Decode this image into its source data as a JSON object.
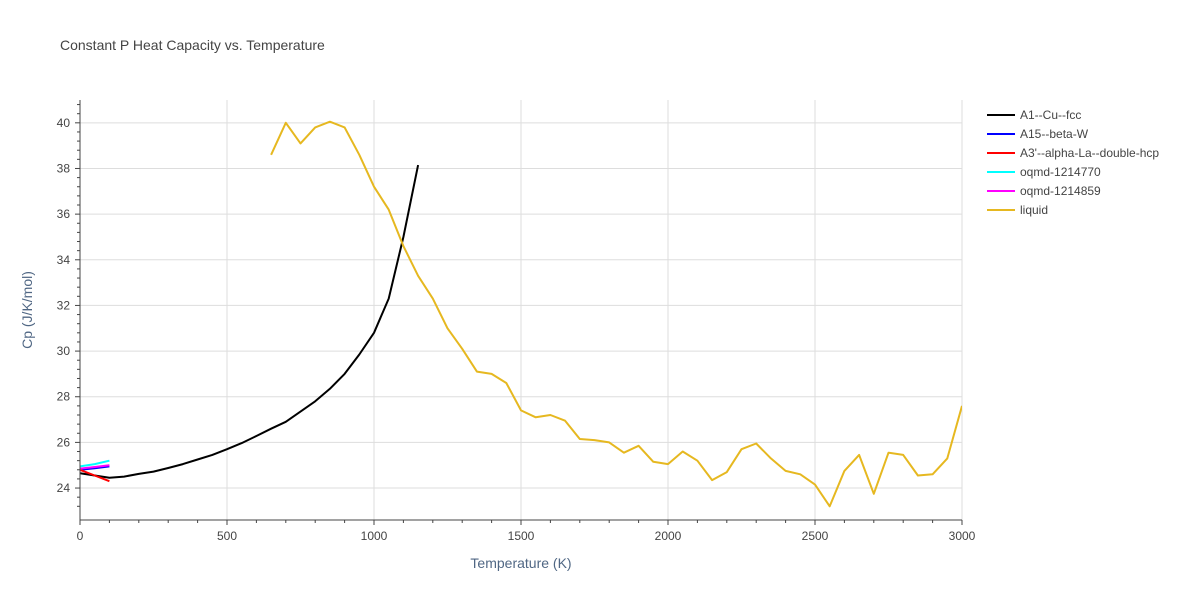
{
  "chart_data": {
    "type": "line",
    "title": "Constant P Heat Capacity vs. Temperature",
    "xlabel": "Temperature (K)",
    "ylabel": "Cp (J/K/mol)",
    "xlim": [
      0,
      3000
    ],
    "ylim": [
      22.6,
      41.0
    ],
    "xticks": [
      0,
      500,
      1000,
      1500,
      2000,
      2500,
      3000
    ],
    "xtick_labels": [
      "0",
      "500",
      "1000",
      "1500",
      "2000",
      "2500",
      "3000"
    ],
    "yticks": [
      24,
      26,
      28,
      30,
      32,
      34,
      36,
      38,
      40
    ],
    "ytick_labels": [
      "24",
      "26",
      "28",
      "30",
      "32",
      "34",
      "36",
      "38",
      "40"
    ],
    "grid": true,
    "legend_position": "right",
    "series": [
      {
        "name": "A1--Cu--fcc",
        "color": "#000000",
        "x": [
          0,
          50,
          100,
          150,
          200,
          250,
          300,
          350,
          400,
          450,
          500,
          550,
          600,
          650,
          700,
          750,
          800,
          850,
          900,
          950,
          1000,
          1050,
          1100,
          1150
        ],
        "y": [
          24.65,
          24.55,
          24.45,
          24.5,
          24.62,
          24.72,
          24.88,
          25.05,
          25.25,
          25.45,
          25.7,
          25.97,
          26.28,
          26.6,
          26.9,
          27.35,
          27.8,
          28.35,
          29.0,
          29.85,
          30.8,
          32.3,
          35.0,
          38.15
        ]
      },
      {
        "name": "A15--beta-W",
        "color": "#0000ff",
        "x": [
          0,
          50,
          100
        ],
        "y": [
          24.8,
          24.87,
          24.95
        ]
      },
      {
        "name": "A3'--alpha-La--double-hcp",
        "color": "#ff0000",
        "x": [
          0,
          50,
          100
        ],
        "y": [
          24.8,
          24.55,
          24.3
        ]
      },
      {
        "name": "oqmd-1214770",
        "color": "#00ffff",
        "x": [
          0,
          50,
          100
        ],
        "y": [
          24.95,
          25.05,
          25.2
        ]
      },
      {
        "name": "oqmd-1214859",
        "color": "#ff00ff",
        "x": [
          0,
          50,
          100
        ],
        "y": [
          24.85,
          24.92,
          25.0
        ]
      },
      {
        "name": "liquid",
        "color": "#e6b820",
        "x": [
          650,
          700,
          750,
          800,
          850,
          900,
          950,
          1000,
          1050,
          1100,
          1150,
          1200,
          1250,
          1300,
          1350,
          1400,
          1450,
          1500,
          1550,
          1600,
          1650,
          1700,
          1750,
          1800,
          1850,
          1900,
          1950,
          2000,
          2050,
          2100,
          2150,
          2200,
          2250,
          2300,
          2350,
          2400,
          2450,
          2500,
          2550,
          2600,
          2650,
          2700,
          2750,
          2800,
          2850,
          2900,
          2950,
          3000
        ],
        "y": [
          38.6,
          40.0,
          39.1,
          39.8,
          40.05,
          39.8,
          38.6,
          37.2,
          36.2,
          34.6,
          33.3,
          32.3,
          31.0,
          30.1,
          29.1,
          29.0,
          28.6,
          27.4,
          27.1,
          27.2,
          26.95,
          26.15,
          26.1,
          26.0,
          25.55,
          25.85,
          25.15,
          25.05,
          25.6,
          25.2,
          24.35,
          24.7,
          25.7,
          25.95,
          25.3,
          24.75,
          24.6,
          24.15,
          23.2,
          24.75,
          25.45,
          23.75,
          25.55,
          25.45,
          24.55,
          24.6,
          25.3,
          27.6
        ]
      }
    ]
  }
}
